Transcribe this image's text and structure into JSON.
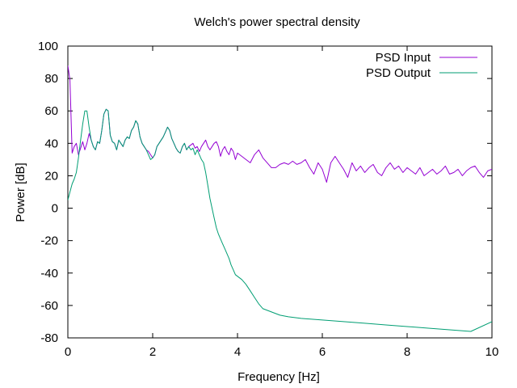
{
  "chart_data": {
    "type": "line",
    "title": "Welch's power spectral density",
    "xlabel": "Frequency [Hz]",
    "ylabel": "Power [dB]",
    "xlim": [
      0,
      10
    ],
    "ylim": [
      -80,
      100
    ],
    "x_ticks": [
      0,
      2,
      4,
      6,
      8,
      10
    ],
    "y_ticks": [
      -80,
      -60,
      -40,
      -20,
      0,
      20,
      40,
      60,
      80,
      100
    ],
    "grid": false,
    "legend_position": "top-right",
    "series": [
      {
        "name": "PSD Input",
        "color": "#9400d3",
        "x": [
          0,
          0.05,
          0.1,
          0.15,
          0.2,
          0.25,
          0.3,
          0.35,
          0.4,
          0.45,
          0.5,
          0.55,
          0.6,
          0.65,
          0.7,
          0.75,
          0.8,
          0.85,
          0.9,
          0.95,
          1.0,
          1.05,
          1.1,
          1.15,
          1.2,
          1.25,
          1.3,
          1.35,
          1.4,
          1.45,
          1.5,
          1.55,
          1.6,
          1.65,
          1.7,
          1.75,
          1.8,
          1.85,
          1.9,
          1.95,
          2.0,
          2.05,
          2.1,
          2.15,
          2.2,
          2.25,
          2.3,
          2.35,
          2.4,
          2.45,
          2.5,
          2.55,
          2.6,
          2.65,
          2.7,
          2.75,
          2.8,
          2.85,
          2.9,
          2.95,
          3.0,
          3.05,
          3.1,
          3.15,
          3.2,
          3.25,
          3.3,
          3.35,
          3.4,
          3.45,
          3.5,
          3.55,
          3.6,
          3.65,
          3.7,
          3.75,
          3.8,
          3.85,
          3.9,
          3.95,
          4.0,
          4.1,
          4.2,
          4.3,
          4.4,
          4.5,
          4.6,
          4.7,
          4.8,
          4.9,
          5.0,
          5.1,
          5.2,
          5.3,
          5.4,
          5.5,
          5.6,
          5.7,
          5.8,
          5.9,
          6.0,
          6.1,
          6.2,
          6.3,
          6.4,
          6.5,
          6.6,
          6.7,
          6.8,
          6.9,
          7.0,
          7.1,
          7.2,
          7.3,
          7.4,
          7.5,
          7.6,
          7.7,
          7.8,
          7.9,
          8.0,
          8.1,
          8.2,
          8.3,
          8.4,
          8.5,
          8.6,
          8.7,
          8.8,
          8.9,
          9.0,
          9.1,
          9.2,
          9.3,
          9.4,
          9.5,
          9.6,
          9.7,
          9.8,
          9.9,
          10.0
        ],
        "y": [
          88,
          79,
          34,
          38,
          40,
          33,
          37,
          41,
          36,
          40,
          46,
          42,
          38,
          36,
          41,
          40,
          48,
          58,
          61,
          60,
          45,
          41,
          40,
          36,
          42,
          40,
          38,
          42,
          44,
          43,
          48,
          50,
          54,
          52,
          44,
          40,
          38,
          36,
          35,
          33,
          31,
          33,
          38,
          40,
          42,
          44,
          47,
          50,
          48,
          43,
          40,
          37,
          35,
          34,
          38,
          40,
          36,
          38,
          39,
          40,
          37,
          38,
          35,
          38,
          40,
          42,
          38,
          36,
          38,
          40,
          41,
          38,
          32,
          36,
          38,
          35,
          33,
          37,
          35,
          30,
          34,
          32,
          30,
          28,
          33,
          36,
          31,
          28,
          25,
          25,
          27,
          28,
          27,
          29,
          27,
          28,
          30,
          25,
          21,
          28,
          24,
          16,
          28,
          32,
          28,
          24,
          19,
          28,
          23,
          26,
          22,
          25,
          27,
          22,
          20,
          25,
          28,
          24,
          26,
          22,
          25,
          23,
          21,
          25,
          20,
          22,
          24,
          21,
          23,
          26,
          21,
          22,
          24,
          20,
          23,
          25,
          26,
          22,
          19,
          23,
          24
        ]
      },
      {
        "name": "PSD Output",
        "color": "#009e73",
        "x": [
          0,
          0.05,
          0.1,
          0.15,
          0.2,
          0.25,
          0.3,
          0.35,
          0.4,
          0.45,
          0.5,
          0.55,
          0.6,
          0.65,
          0.7,
          0.75,
          0.8,
          0.85,
          0.9,
          0.95,
          1.0,
          1.05,
          1.1,
          1.15,
          1.2,
          1.25,
          1.3,
          1.35,
          1.4,
          1.45,
          1.5,
          1.55,
          1.6,
          1.65,
          1.7,
          1.75,
          1.8,
          1.85,
          1.9,
          1.95,
          2.0,
          2.05,
          2.1,
          2.15,
          2.2,
          2.25,
          2.3,
          2.35,
          2.4,
          2.45,
          2.5,
          2.55,
          2.6,
          2.65,
          2.7,
          2.75,
          2.8,
          2.85,
          2.9,
          2.95,
          3.0,
          3.05,
          3.1,
          3.15,
          3.2,
          3.25,
          3.3,
          3.35,
          3.4,
          3.45,
          3.5,
          3.55,
          3.6,
          3.65,
          3.7,
          3.75,
          3.8,
          3.85,
          3.9,
          3.95,
          4.0,
          4.1,
          4.2,
          4.3,
          4.4,
          4.5,
          4.6,
          4.8,
          5.0,
          5.2,
          5.5,
          6.0,
          6.5,
          7.0,
          7.5,
          8.0,
          8.5,
          9.0,
          9.5,
          10.0
        ],
        "y": [
          5,
          10,
          15,
          18,
          22,
          31,
          42,
          52,
          60,
          60,
          50,
          42,
          38,
          36,
          41,
          40,
          48,
          58,
          61,
          60,
          45,
          41,
          40,
          36,
          42,
          40,
          38,
          42,
          44,
          43,
          48,
          50,
          54,
          52,
          44,
          40,
          38,
          36,
          33,
          30,
          31,
          33,
          38,
          40,
          42,
          44,
          47,
          50,
          48,
          43,
          40,
          37,
          35,
          34,
          38,
          40,
          36,
          38,
          36,
          37,
          33,
          36,
          33,
          30,
          28,
          22,
          14,
          6,
          0,
          -6,
          -12,
          -16,
          -19,
          -22,
          -25,
          -28,
          -31,
          -35,
          -38,
          -41,
          -42,
          -44,
          -47,
          -51,
          -55,
          -59,
          -62,
          -64,
          -66,
          -67,
          -68,
          -69,
          -70,
          -71,
          -72,
          -73,
          -74,
          -75,
          -76,
          -70
        ]
      }
    ]
  }
}
